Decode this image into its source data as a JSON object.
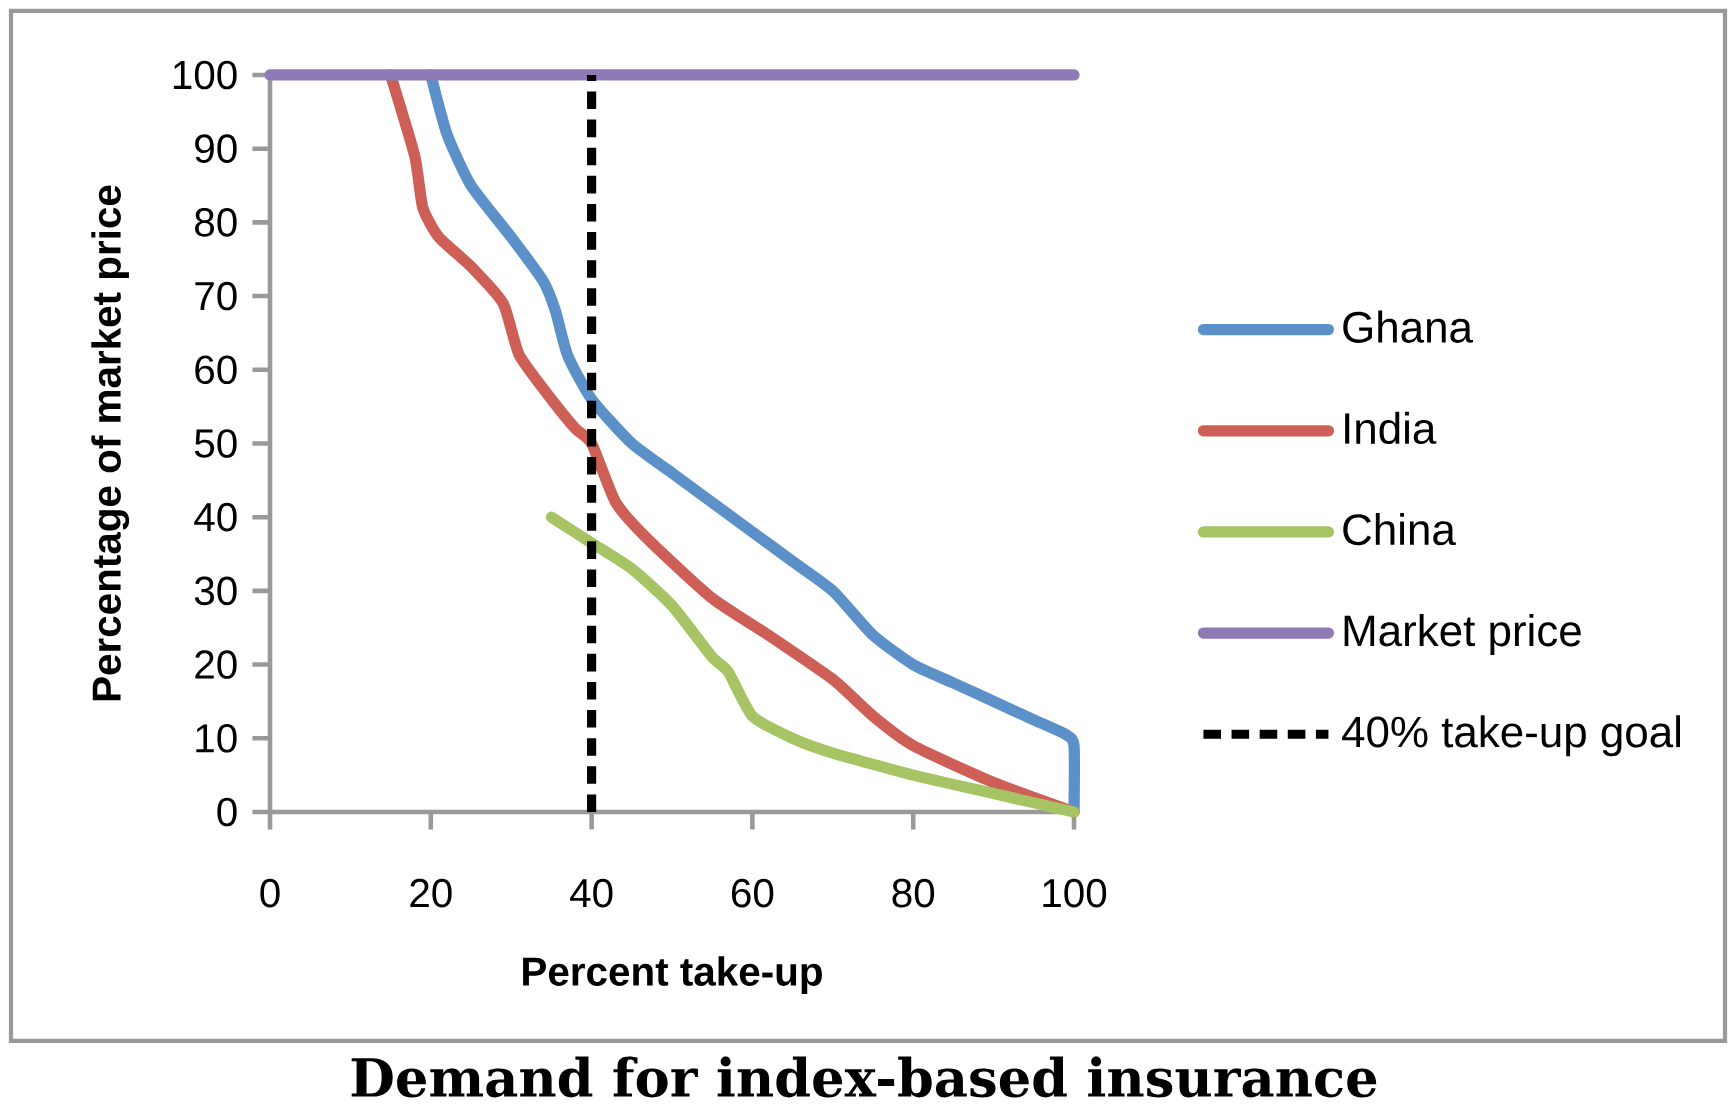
{
  "chart_data": {
    "type": "line",
    "title": "Demand for index-based insurance",
    "xlabel": "Percent take-up",
    "ylabel": "Percentage of market price",
    "xlim": [
      0,
      100
    ],
    "ylim": [
      0,
      100
    ],
    "xticks": [
      0,
      20,
      40,
      60,
      80,
      100
    ],
    "yticks": [
      0,
      10,
      20,
      30,
      40,
      50,
      60,
      70,
      80,
      90,
      100
    ],
    "series": [
      {
        "name": "Ghana",
        "color": "#5b90c8",
        "x": [
          20,
          22,
          25,
          30,
          34,
          35.5,
          37,
          40,
          45,
          50,
          55,
          60,
          65,
          70,
          75,
          80,
          85,
          90,
          95,
          99,
          100,
          100
        ],
        "values": [
          100,
          92,
          85,
          78,
          72,
          68,
          62,
          56,
          50,
          46,
          42,
          38,
          34,
          30,
          24,
          20,
          17.5,
          15,
          12.5,
          10.5,
          9,
          0
        ]
      },
      {
        "name": "India",
        "color": "#cd5f56",
        "x": [
          15,
          18,
          19,
          21,
          25,
          29,
          31,
          35,
          38,
          40,
          43,
          47,
          55,
          62,
          70,
          75,
          80,
          90,
          100
        ],
        "values": [
          100,
          89,
          82,
          78,
          74,
          69,
          62,
          56,
          52,
          50,
          42,
          37,
          29,
          24,
          18,
          13,
          9,
          4,
          0
        ]
      },
      {
        "name": "China",
        "color": "#a6c464",
        "x": [
          35,
          40,
          45,
          50,
          55,
          57,
          60,
          65,
          70,
          80,
          90,
          100
        ],
        "values": [
          40,
          36.5,
          33,
          28,
          21,
          19,
          13,
          10,
          8,
          5,
          2.5,
          0
        ]
      },
      {
        "name": "Market price",
        "color": "#8e7bb5",
        "x": [
          0,
          100
        ],
        "values": [
          100,
          100
        ]
      },
      {
        "name": "40% take-up goal",
        "color": "#000000",
        "x": [
          40,
          40
        ],
        "values": [
          0,
          100
        ],
        "line_style": "dashed"
      }
    ],
    "legend": "right"
  }
}
